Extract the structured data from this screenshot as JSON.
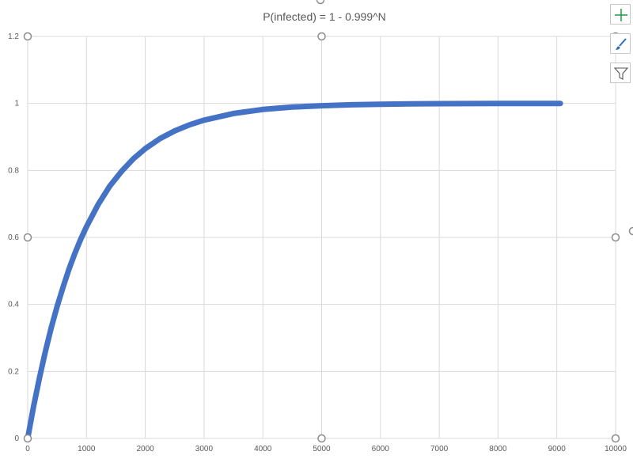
{
  "chart_data": {
    "type": "line",
    "title": "P(infected) = 1 - 0.999^N",
    "xlabel": "",
    "ylabel": "",
    "xlim": [
      0,
      10000
    ],
    "ylim": [
      0,
      1.2
    ],
    "x_ticks": [
      0,
      1000,
      2000,
      3000,
      4000,
      5000,
      6000,
      7000,
      8000,
      9000,
      10000
    ],
    "x_tick_labels": [
      "0",
      "1000",
      "2000",
      "3000",
      "4000",
      "5000",
      "6000",
      "7000",
      "8000",
      "9000",
      "10000"
    ],
    "y_ticks": [
      0,
      0.2,
      0.4,
      0.6,
      0.8,
      1,
      1.2
    ],
    "y_tick_labels": [
      "0",
      "0.2",
      "0.4",
      "0.6",
      "0.8",
      "1",
      "1.2"
    ],
    "grid": true,
    "legend": "none",
    "series": [
      {
        "color": "#4472C4",
        "x": [
          0,
          100,
          200,
          300,
          400,
          500,
          600,
          700,
          800,
          900,
          1000,
          1200,
          1400,
          1600,
          1800,
          2000,
          2250,
          2500,
          2750,
          3000,
          3500,
          4000,
          4500,
          5000,
          5500,
          6000,
          6500,
          7000,
          7500,
          8000,
          8500,
          9060
        ],
        "y": [
          0,
          0.095,
          0.181,
          0.259,
          0.33,
          0.394,
          0.451,
          0.504,
          0.551,
          0.594,
          0.632,
          0.699,
          0.754,
          0.798,
          0.835,
          0.865,
          0.895,
          0.918,
          0.936,
          0.95,
          0.97,
          0.982,
          0.989,
          0.993,
          0.996,
          0.9975,
          0.9985,
          0.9991,
          0.9994,
          0.9997,
          0.9998,
          0.9999
        ]
      }
    ]
  },
  "toolbar": {
    "chart_elements_icon": "plus-icon",
    "chart_styles_icon": "brush-icon",
    "chart_filters_icon": "funnel-icon"
  }
}
